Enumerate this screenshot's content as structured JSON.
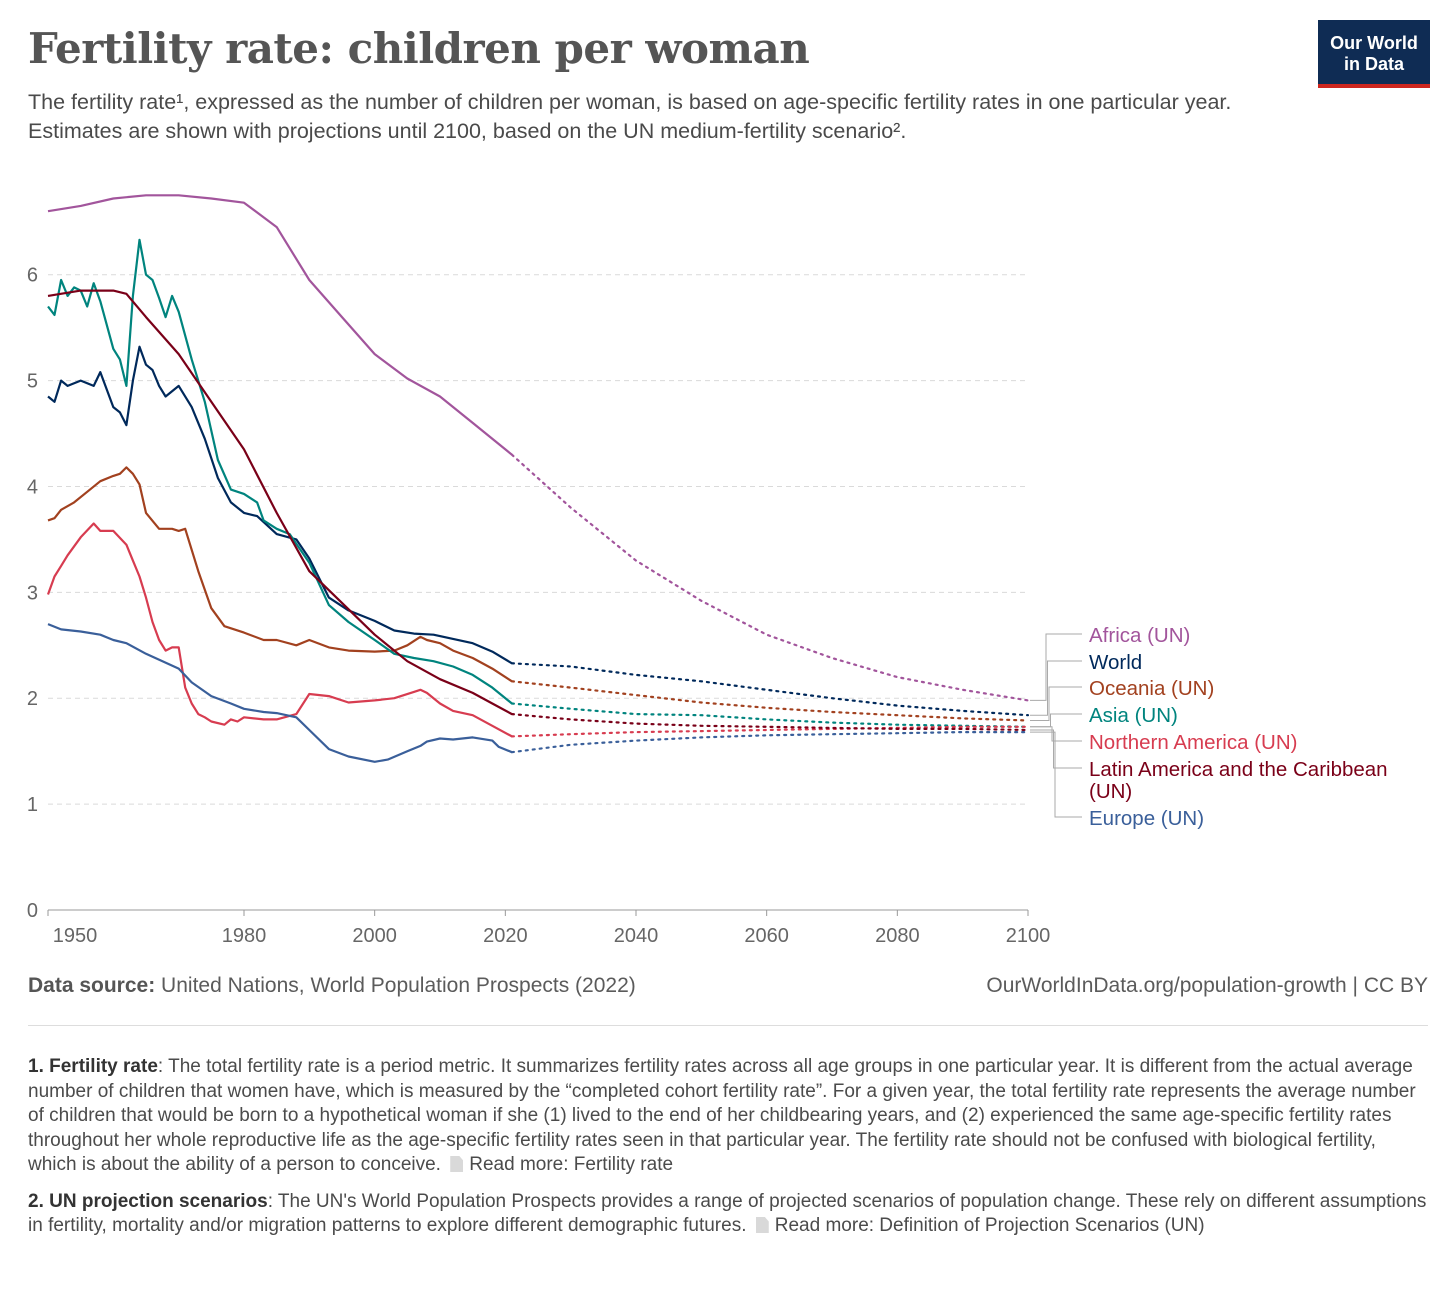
{
  "title": "Fertility rate: children per woman",
  "subtitle": "The fertility rate¹, expressed as the number of children per woman, is based on age-specific fertility rates in one particular year. Estimates are shown with projections until 2100, based on the UN medium-fertility scenario².",
  "logo": {
    "line1": "Our World",
    "line2": "in Data",
    "bg": "#0f2c54",
    "accent": "#ce261e"
  },
  "footer": {
    "source_label": "Data source:",
    "source_text": " United Nations, World Population Prospects (2022)",
    "license": "OurWorldInData.org/population-growth | CC BY"
  },
  "notes": [
    {
      "label": "1. Fertility rate",
      "text": ": The total fertility rate is a period metric. It summarizes fertility rates across all age groups in one particular year. It is different from the actual average number of children that women have, which is measured by the “completed cohort fertility rate”. For a given year, the total fertility rate represents the average number of children that would be born to a hypothetical woman if she (1) lived to the end of her childbearing years, and (2) experienced the same age-specific fertility rates throughout her whole reproductive life as the age-specific fertility rates seen in that particular year. The fertility rate should not be confused with biological fertility, which is about the ability of a person to conceive.",
      "link": "Read more: Fertility rate"
    },
    {
      "label": "2. UN projection scenarios",
      "text": ": The UN's World Population Prospects provides a range of projected scenarios of population change. These rely on different assumptions in fertility, mortality and/or migration patterns to explore different demographic futures.",
      "link": "Read more: Definition of Projection Scenarios (UN)"
    }
  ],
  "chart_data": {
    "type": "line",
    "title": "Fertility rate: children per woman",
    "xlim": [
      1950,
      2100
    ],
    "ylim": [
      0,
      6.8
    ],
    "x_ticks": [
      1950,
      1980,
      2000,
      2020,
      2040,
      2060,
      2080,
      2100
    ],
    "y_ticks": [
      0,
      1,
      2,
      3,
      4,
      5,
      6
    ],
    "grid": "horizontal dashed",
    "legend": "right",
    "projection_start": 2021,
    "series": [
      {
        "name": "Africa (UN)",
        "color": "#a2559c",
        "x": [
          1950,
          1955,
          1960,
          1965,
          1970,
          1975,
          1980,
          1985,
          1990,
          1995,
          2000,
          2005,
          2010,
          2015,
          2021
        ],
        "y": [
          6.6,
          6.65,
          6.72,
          6.75,
          6.75,
          6.72,
          6.68,
          6.45,
          5.95,
          5.6,
          5.25,
          5.02,
          4.85,
          4.6,
          4.3
        ],
        "proj_x": [
          2021,
          2030,
          2040,
          2050,
          2060,
          2070,
          2080,
          2090,
          2100
        ],
        "proj_y": [
          4.3,
          3.8,
          3.3,
          2.92,
          2.6,
          2.38,
          2.2,
          2.08,
          1.98
        ]
      },
      {
        "name": "World",
        "color": "#00295b",
        "x": [
          1950,
          1951,
          1952,
          1953,
          1955,
          1957,
          1958,
          1960,
          1961,
          1962,
          1963,
          1964,
          1965,
          1966,
          1967,
          1968,
          1970,
          1972,
          1974,
          1976,
          1978,
          1980,
          1982,
          1985,
          1988,
          1990,
          1993,
          1996,
          2000,
          2003,
          2006,
          2009,
          2012,
          2015,
          2018,
          2021
        ],
        "y": [
          4.85,
          4.8,
          5.0,
          4.95,
          5.0,
          4.95,
          5.08,
          4.75,
          4.7,
          4.58,
          5.0,
          5.32,
          5.15,
          5.1,
          4.95,
          4.85,
          4.95,
          4.75,
          4.45,
          4.08,
          3.85,
          3.75,
          3.72,
          3.55,
          3.5,
          3.32,
          2.95,
          2.83,
          2.73,
          2.64,
          2.61,
          2.6,
          2.56,
          2.52,
          2.44,
          2.33
        ],
        "proj_x": [
          2021,
          2030,
          2040,
          2050,
          2060,
          2070,
          2080,
          2090,
          2100
        ],
        "proj_y": [
          2.33,
          2.3,
          2.22,
          2.16,
          2.08,
          2.0,
          1.93,
          1.88,
          1.84
        ]
      },
      {
        "name": "Oceania (UN)",
        "color": "#a2411f",
        "x": [
          1950,
          1951,
          1952,
          1954,
          1956,
          1958,
          1960,
          1961,
          1962,
          1963,
          1964,
          1965,
          1967,
          1969,
          1970,
          1971,
          1973,
          1975,
          1977,
          1980,
          1983,
          1985,
          1988,
          1990,
          1993,
          1996,
          2000,
          2003,
          2005,
          2007,
          2008,
          2010,
          2012,
          2015,
          2018,
          2021
        ],
        "y": [
          3.68,
          3.7,
          3.78,
          3.85,
          3.95,
          4.05,
          4.1,
          4.12,
          4.18,
          4.12,
          4.02,
          3.75,
          3.6,
          3.6,
          3.58,
          3.6,
          3.2,
          2.85,
          2.68,
          2.62,
          2.55,
          2.55,
          2.5,
          2.55,
          2.48,
          2.45,
          2.44,
          2.45,
          2.5,
          2.58,
          2.55,
          2.52,
          2.45,
          2.38,
          2.28,
          2.16
        ],
        "proj_x": [
          2021,
          2030,
          2040,
          2050,
          2060,
          2070,
          2080,
          2090,
          2100
        ],
        "proj_y": [
          2.16,
          2.1,
          2.03,
          1.96,
          1.91,
          1.87,
          1.84,
          1.81,
          1.79
        ]
      },
      {
        "name": "Asia (UN)",
        "color": "#00847e",
        "x": [
          1950,
          1951,
          1952,
          1953,
          1954,
          1955,
          1956,
          1957,
          1958,
          1960,
          1961,
          1962,
          1963,
          1964,
          1965,
          1966,
          1967,
          1968,
          1969,
          1970,
          1972,
          1974,
          1976,
          1978,
          1980,
          1982,
          1983,
          1985,
          1987,
          1990,
          1993,
          1996,
          2000,
          2003,
          2006,
          2009,
          2012,
          2015,
          2018,
          2021
        ],
        "y": [
          5.7,
          5.62,
          5.95,
          5.8,
          5.88,
          5.85,
          5.7,
          5.92,
          5.75,
          5.3,
          5.2,
          4.95,
          5.8,
          6.33,
          6.0,
          5.95,
          5.78,
          5.6,
          5.8,
          5.65,
          5.2,
          4.8,
          4.25,
          3.97,
          3.93,
          3.85,
          3.68,
          3.6,
          3.55,
          3.28,
          2.88,
          2.72,
          2.55,
          2.42,
          2.38,
          2.35,
          2.3,
          2.22,
          2.1,
          1.95
        ],
        "proj_x": [
          2021,
          2030,
          2040,
          2050,
          2060,
          2070,
          2080,
          2090,
          2100
        ],
        "proj_y": [
          1.95,
          1.9,
          1.85,
          1.84,
          1.8,
          1.77,
          1.75,
          1.74,
          1.73
        ]
      },
      {
        "name": "Northern America (UN)",
        "color": "#d73c50",
        "x": [
          1950,
          1951,
          1952,
          1953,
          1955,
          1957,
          1958,
          1960,
          1962,
          1963,
          1964,
          1965,
          1966,
          1967,
          1968,
          1969,
          1970,
          1971,
          1972,
          1973,
          1974,
          1975,
          1977,
          1978,
          1979,
          1980,
          1983,
          1985,
          1988,
          1990,
          1993,
          1996,
          2000,
          2003,
          2006,
          2007,
          2008,
          2010,
          2012,
          2015,
          2018,
          2021
        ],
        "y": [
          2.98,
          3.15,
          3.25,
          3.35,
          3.52,
          3.65,
          3.58,
          3.58,
          3.45,
          3.3,
          3.15,
          2.95,
          2.72,
          2.55,
          2.45,
          2.48,
          2.48,
          2.1,
          1.95,
          1.85,
          1.82,
          1.78,
          1.75,
          1.8,
          1.78,
          1.82,
          1.8,
          1.8,
          1.85,
          2.04,
          2.02,
          1.96,
          1.98,
          2.0,
          2.06,
          2.08,
          2.05,
          1.95,
          1.88,
          1.84,
          1.74,
          1.64
        ],
        "proj_x": [
          2021,
          2030,
          2040,
          2050,
          2060,
          2070,
          2080,
          2090,
          2100
        ],
        "proj_y": [
          1.64,
          1.66,
          1.68,
          1.69,
          1.7,
          1.71,
          1.72,
          1.73,
          1.73
        ]
      },
      {
        "name": "Latin America and the Caribbean (UN)",
        "color": "#7a0018",
        "x": [
          1950,
          1955,
          1960,
          1962,
          1965,
          1970,
          1975,
          1980,
          1985,
          1990,
          1995,
          2000,
          2005,
          2010,
          2015,
          2018,
          2021
        ],
        "y": [
          5.8,
          5.85,
          5.85,
          5.82,
          5.6,
          5.25,
          4.8,
          4.35,
          3.75,
          3.2,
          2.9,
          2.6,
          2.35,
          2.18,
          2.05,
          1.95,
          1.85
        ],
        "proj_x": [
          2021,
          2030,
          2040,
          2050,
          2060,
          2070,
          2080,
          2090,
          2100
        ],
        "proj_y": [
          1.85,
          1.8,
          1.76,
          1.74,
          1.73,
          1.72,
          1.71,
          1.71,
          1.7
        ]
      },
      {
        "name": "Europe (UN)",
        "color": "#3a5f9a",
        "x": [
          1950,
          1952,
          1955,
          1958,
          1960,
          1962,
          1965,
          1970,
          1972,
          1975,
          1978,
          1980,
          1983,
          1985,
          1988,
          1990,
          1993,
          1996,
          2000,
          2002,
          2005,
          2007,
          2008,
          2010,
          2012,
          2015,
          2018,
          2019,
          2021
        ],
        "y": [
          2.7,
          2.65,
          2.63,
          2.6,
          2.55,
          2.52,
          2.42,
          2.28,
          2.15,
          2.02,
          1.95,
          1.9,
          1.87,
          1.86,
          1.82,
          1.7,
          1.52,
          1.45,
          1.4,
          1.42,
          1.5,
          1.55,
          1.59,
          1.62,
          1.61,
          1.63,
          1.6,
          1.54,
          1.49
        ],
        "proj_x": [
          2021,
          2030,
          2040,
          2050,
          2060,
          2070,
          2080,
          2090,
          2100
        ],
        "proj_y": [
          1.49,
          1.56,
          1.6,
          1.63,
          1.65,
          1.66,
          1.67,
          1.68,
          1.68
        ]
      }
    ],
    "legend_order": [
      "Africa (UN)",
      "World",
      "Oceania (UN)",
      "Asia (UN)",
      "Northern America (UN)",
      "Latin America and the Caribbean (UN)",
      "Europe (UN)"
    ],
    "legend_lines": [
      [
        "Africa (UN)"
      ],
      [
        "World"
      ],
      [
        "Oceania (UN)"
      ],
      [
        "Asia (UN)"
      ],
      [
        "Northern America (UN)"
      ],
      [
        "Latin America and the Caribbean",
        "(UN)"
      ],
      [
        "Europe (UN)"
      ]
    ]
  }
}
